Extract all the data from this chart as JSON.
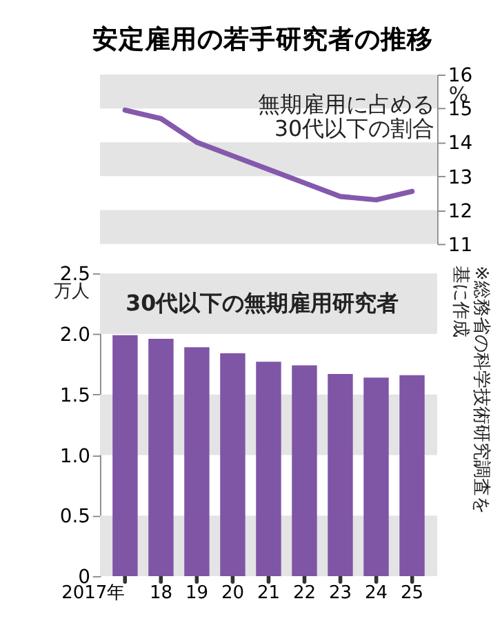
{
  "chart_data": [
    {
      "type": "line",
      "title": "安定雇用の若手研究者の推移",
      "ylabel": "%",
      "categories": [
        null,
        null,
        null,
        null,
        null,
        null,
        null,
        null,
        null
      ],
      "series": [
        {
          "color": "#8459ad",
          "values": [
            14.95,
            14.7,
            14.0,
            13.6,
            13.2,
            12.8,
            12.4,
            12.3,
            12.55
          ]
        }
      ],
      "ylim": [
        11,
        16
      ],
      "yticks": [
        11,
        12,
        13,
        14,
        15,
        16
      ],
      "tick_labels": "y",
      "grid": false,
      "marker": "none",
      "line_style": "solid",
      "bands": [
        {
          "axis": "y",
          "from": 15,
          "to": 16,
          "color": "#e4e4e4"
        },
        {
          "axis": "y",
          "from": 13,
          "to": 14,
          "color": "#e4e4e4"
        },
        {
          "axis": "y",
          "from": 11,
          "to": 12,
          "color": "#e4e4e4"
        }
      ],
      "annotations": [
        "無期雇用に占める\n30代以下の割合"
      ]
    },
    {
      "type": "bar",
      "ylabel": "万人",
      "categories": [
        "2017年",
        "18",
        "19",
        "20",
        "21",
        "22",
        "23",
        "24",
        "25"
      ],
      "series": [
        {
          "color": "#7f55a6",
          "values": [
            1.99,
            1.96,
            1.89,
            1.84,
            1.77,
            1.74,
            1.67,
            1.64,
            1.66
          ]
        }
      ],
      "ylim": [
        0,
        2.5
      ],
      "yticks": [
        {
          "value": 0,
          "label": "0"
        },
        {
          "value": 0.5,
          "label": "0.5"
        },
        {
          "value": 1,
          "label": "1.0"
        },
        {
          "value": 1.5,
          "label": "1.5"
        },
        {
          "value": 2,
          "label": "2.0"
        },
        {
          "value": 2.5,
          "label": "2.5"
        }
      ],
      "grid": false,
      "bands": [
        {
          "axis": "y",
          "from": 2,
          "to": 2.5,
          "color": "#e4e4e4"
        },
        {
          "axis": "y",
          "from": 1,
          "to": 1.5,
          "color": "#e4e4e4"
        },
        {
          "axis": "y",
          "from": 0,
          "to": 0.5,
          "color": "#e4e4e4"
        }
      ],
      "annotations": [
        "30代以下の無期雇用研究者",
        "※総務省の科学技術研究調査を基に作成"
      ]
    }
  ]
}
